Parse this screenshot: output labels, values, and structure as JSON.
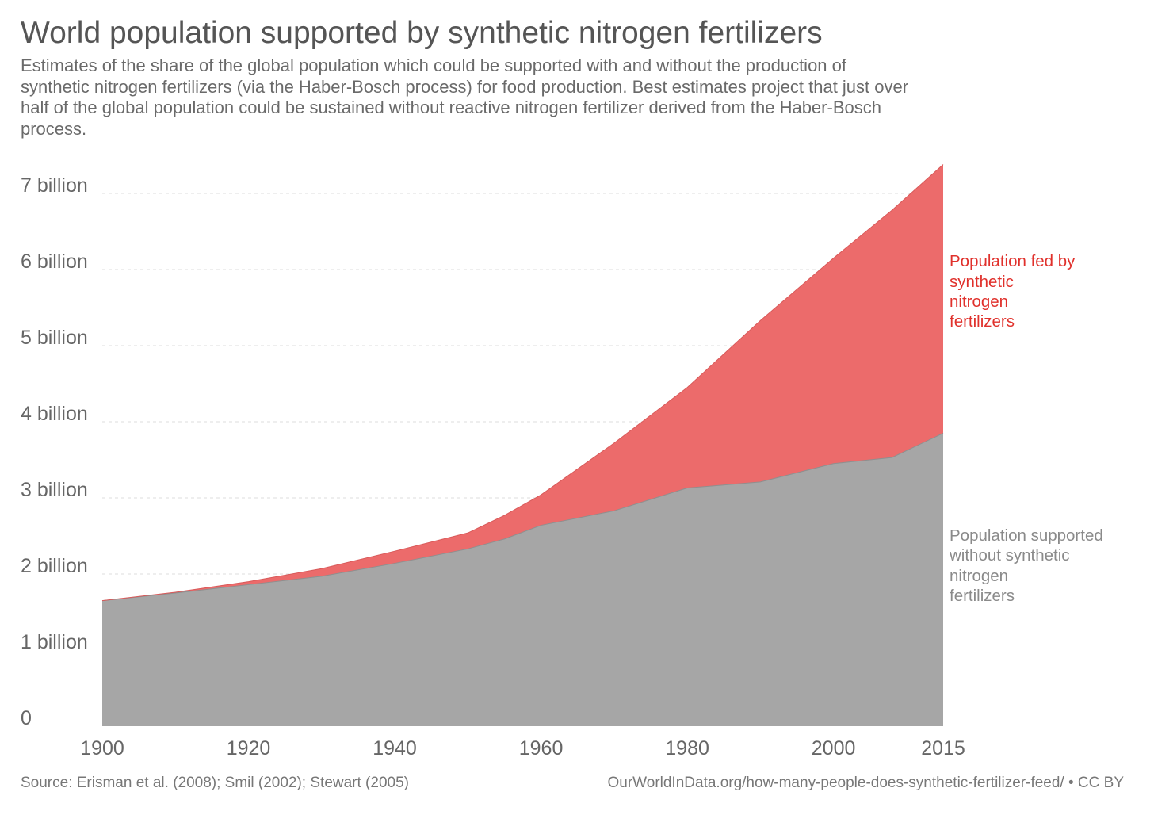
{
  "title": "World population supported by synthetic nitrogen fertilizers",
  "subtitle": [
    "Estimates of the share of the global population which could be supported with and without the production of",
    "synthetic nitrogen fertilizers (via the Haber-Bosch process) for food production. Best estimates project that just over",
    "half of the global population could be sustained without reactive nitrogen fertilizer derived from the Haber-Bosch",
    "process."
  ],
  "footer": {
    "source": "Source: Erisman et al. (2008); Smil (2002); Stewart (2005)",
    "url": "OurWorldInData.org/how-many-people-does-synthetic-fertilizer-feed/ • CC BY"
  },
  "chart_data": {
    "type": "area",
    "stacked": true,
    "x": [
      1900,
      1910,
      1920,
      1930,
      1940,
      1950,
      1955,
      1960,
      1970,
      1980,
      1990,
      2000,
      2008,
      2015
    ],
    "series": [
      {
        "name": "Population supported\nwithout synthetic\nnitrogen\nfertilizers",
        "color": "#a6a6a6",
        "label_color": "#8a8a8a",
        "values": [
          1.65,
          1.75,
          1.86,
          1.97,
          2.14,
          2.33,
          2.46,
          2.64,
          2.83,
          3.13,
          3.21,
          3.45,
          3.53,
          3.85
        ]
      },
      {
        "name": "Population fed by\nsynthetic\nnitrogen\nfertilizers",
        "color": "#ec6b6b",
        "label_color": "#e0312c",
        "values": [
          0.0,
          0.01,
          0.04,
          0.1,
          0.16,
          0.21,
          0.31,
          0.4,
          0.89,
          1.32,
          2.12,
          2.7,
          3.25,
          3.53
        ]
      }
    ],
    "xticks": [
      {
        "value": 1900,
        "label": "1900"
      },
      {
        "value": 1920,
        "label": "1920"
      },
      {
        "value": 1940,
        "label": "1940"
      },
      {
        "value": 1960,
        "label": "1960"
      },
      {
        "value": 1980,
        "label": "1980"
      },
      {
        "value": 2000,
        "label": "2000"
      },
      {
        "value": 2015,
        "label": "2015"
      }
    ],
    "yticks": [
      {
        "value": 0,
        "label": "0"
      },
      {
        "value": 1,
        "label": "1 billion"
      },
      {
        "value": 2,
        "label": "2 billion"
      },
      {
        "value": 3,
        "label": "3 billion"
      },
      {
        "value": 4,
        "label": "4 billion"
      },
      {
        "value": 5,
        "label": "5 billion"
      },
      {
        "value": 6,
        "label": "6 billion"
      },
      {
        "value": 7,
        "label": "7 billion"
      }
    ],
    "xlim": [
      1900,
      2015
    ],
    "ylim": [
      0,
      7.5
    ],
    "grid": "horizontal dashed",
    "legend": "right, inline labels"
  }
}
